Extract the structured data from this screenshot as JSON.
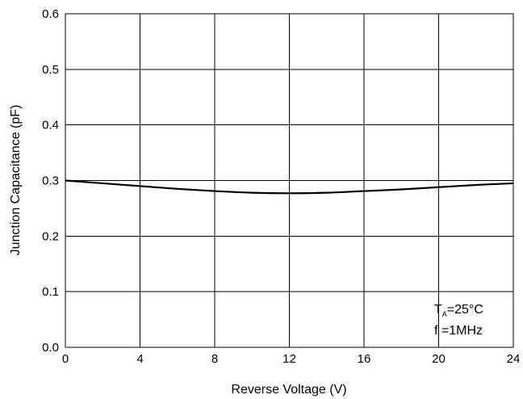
{
  "chart_data": {
    "type": "line",
    "xlabel": "Reverse Voltage (V)",
    "ylabel": "Junction Capacitance (pF)",
    "xlim": [
      0,
      24
    ],
    "ylim": [
      0,
      0.6
    ],
    "xticks": [
      "0",
      "4",
      "8",
      "12",
      "16",
      "20",
      "24"
    ],
    "yticks": [
      "0.0",
      "0.1",
      "0.2",
      "0.3",
      "0.4",
      "0.5",
      "0.6"
    ],
    "grid": true,
    "series": [
      {
        "x": [
          0,
          2,
          4,
          6,
          8,
          10,
          12,
          14,
          16,
          18,
          20,
          22,
          24
        ],
        "y": [
          0.3,
          0.295,
          0.29,
          0.285,
          0.281,
          0.278,
          0.277,
          0.278,
          0.281,
          0.284,
          0.288,
          0.292,
          0.295
        ]
      }
    ],
    "annotation": {
      "line1_main": "T",
      "line1_sub": "A",
      "line1_rest": "=25°C",
      "line2": "f =1MHz"
    }
  }
}
